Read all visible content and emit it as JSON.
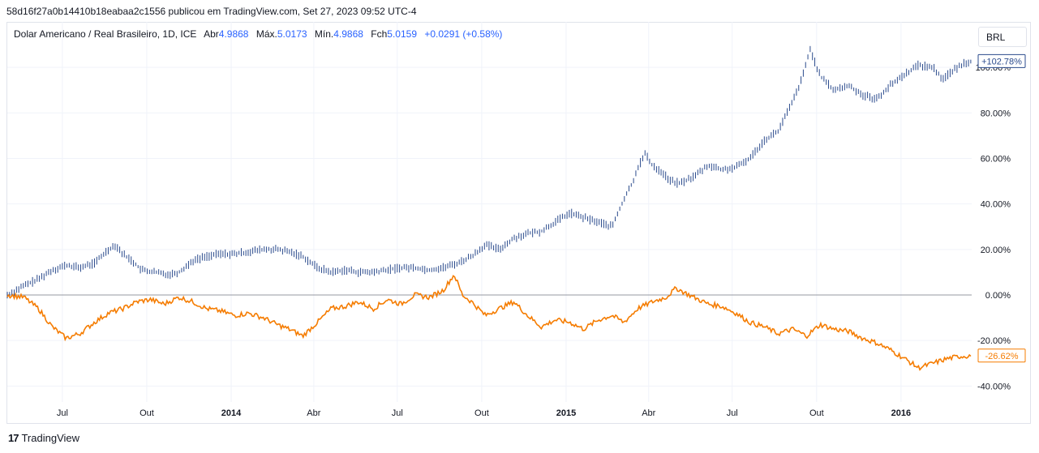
{
  "header": {
    "text": "58d16f27a0b14410b18eabaa2c1556 publicou em TradingView.com, Set 27, 2023 09:52 UTC-4"
  },
  "legend": {
    "symbol": "Dolar Americano / Real Brasileiro, 1D, ICE",
    "open_label": "Abr",
    "open": "4.9868",
    "high_label": "Máx.",
    "high": "5.0173",
    "low_label": "Mín.",
    "low": "4.9868",
    "close_label": "Fch",
    "close": "5.0159",
    "change": "+0.0291 (+0.58%)"
  },
  "currency_button": "BRL",
  "footer": {
    "logo": "17",
    "brand": "TradingView"
  },
  "colors": {
    "primary": "#2a4a8c",
    "compare": "#f57c00",
    "grid": "#f0f3fa",
    "zero_line": "#9598a1",
    "accent": "#2962ff"
  },
  "chart_data": {
    "type": "line",
    "x_axis": {
      "type": "date",
      "range": [
        "2013-05-02",
        "2016-03-18"
      ],
      "ticks": [
        {
          "date": "2013-07-01",
          "label": "Jul",
          "bold": false
        },
        {
          "date": "2013-10-01",
          "label": "Out",
          "bold": false
        },
        {
          "date": "2014-01-01",
          "label": "2014",
          "bold": true
        },
        {
          "date": "2014-04-01",
          "label": "Abr",
          "bold": false
        },
        {
          "date": "2014-07-01",
          "label": "Jul",
          "bold": false
        },
        {
          "date": "2014-10-01",
          "label": "Out",
          "bold": false
        },
        {
          "date": "2015-01-01",
          "label": "2015",
          "bold": true
        },
        {
          "date": "2015-04-01",
          "label": "Abr",
          "bold": false
        },
        {
          "date": "2015-07-01",
          "label": "Jul",
          "bold": false
        },
        {
          "date": "2015-10-01",
          "label": "Out",
          "bold": false
        },
        {
          "date": "2016-01-01",
          "label": "2016",
          "bold": true
        }
      ]
    },
    "y_axis": {
      "unit": "%",
      "range": [
        -47,
        120
      ],
      "ticks": [
        100,
        80,
        60,
        40,
        20,
        0,
        -20,
        -40
      ],
      "tick_labels": [
        "100.00%",
        "80.00%",
        "60.00%",
        "40.00%",
        "20.00%",
        "0.00%",
        "-20.00%",
        "-40.00%"
      ]
    },
    "series": [
      {
        "style": "ohlc-bars",
        "color": "#2a4a8c",
        "last_label": "+102.78%",
        "points": [
          [
            "2013-05-02",
            0
          ],
          [
            "2013-05-20",
            4
          ],
          [
            "2013-06-05",
            7
          ],
          [
            "2013-06-20",
            11
          ],
          [
            "2013-07-05",
            13
          ],
          [
            "2013-07-20",
            12
          ],
          [
            "2013-08-05",
            14
          ],
          [
            "2013-08-20",
            20
          ],
          [
            "2013-08-28",
            22
          ],
          [
            "2013-09-05",
            18
          ],
          [
            "2013-09-15",
            15
          ],
          [
            "2013-09-25",
            11
          ],
          [
            "2013-10-10",
            10
          ],
          [
            "2013-10-25",
            9
          ],
          [
            "2013-11-05",
            10
          ],
          [
            "2013-11-20",
            15
          ],
          [
            "2013-12-05",
            17
          ],
          [
            "2013-12-20",
            18
          ],
          [
            "2014-01-05",
            18
          ],
          [
            "2014-01-20",
            19
          ],
          [
            "2014-02-05",
            20
          ],
          [
            "2014-02-20",
            20
          ],
          [
            "2014-03-05",
            19
          ],
          [
            "2014-03-20",
            17
          ],
          [
            "2014-04-05",
            12
          ],
          [
            "2014-04-20",
            10
          ],
          [
            "2014-05-05",
            11
          ],
          [
            "2014-05-20",
            10
          ],
          [
            "2014-06-05",
            10
          ],
          [
            "2014-06-20",
            11
          ],
          [
            "2014-07-05",
            12
          ],
          [
            "2014-07-20",
            12
          ],
          [
            "2014-08-05",
            11
          ],
          [
            "2014-08-20",
            12
          ],
          [
            "2014-09-05",
            14
          ],
          [
            "2014-09-20",
            17
          ],
          [
            "2014-10-05",
            22
          ],
          [
            "2014-10-20",
            20
          ],
          [
            "2014-11-05",
            25
          ],
          [
            "2014-11-20",
            27
          ],
          [
            "2014-12-05",
            28
          ],
          [
            "2014-12-20",
            32
          ],
          [
            "2015-01-05",
            36
          ],
          [
            "2015-01-20",
            34
          ],
          [
            "2015-02-05",
            32
          ],
          [
            "2015-02-20",
            30
          ],
          [
            "2015-03-05",
            42
          ],
          [
            "2015-03-15",
            50
          ],
          [
            "2015-03-20",
            56
          ],
          [
            "2015-03-28",
            62
          ],
          [
            "2015-04-05",
            57
          ],
          [
            "2015-04-15",
            54
          ],
          [
            "2015-04-25",
            50
          ],
          [
            "2015-05-05",
            49
          ],
          [
            "2015-05-20",
            52
          ],
          [
            "2015-06-05",
            57
          ],
          [
            "2015-06-20",
            55
          ],
          [
            "2015-07-05",
            56
          ],
          [
            "2015-07-20",
            60
          ],
          [
            "2015-08-05",
            68
          ],
          [
            "2015-08-20",
            72
          ],
          [
            "2015-09-05",
            85
          ],
          [
            "2015-09-15",
            95
          ],
          [
            "2015-09-24",
            108
          ],
          [
            "2015-10-05",
            96
          ],
          [
            "2015-10-20",
            90
          ],
          [
            "2015-11-05",
            92
          ],
          [
            "2015-11-20",
            88
          ],
          [
            "2015-12-05",
            86
          ],
          [
            "2015-12-20",
            92
          ],
          [
            "2016-01-05",
            97
          ],
          [
            "2016-01-20",
            101
          ],
          [
            "2016-02-05",
            100
          ],
          [
            "2016-02-15",
            95
          ],
          [
            "2016-02-25",
            98
          ],
          [
            "2016-03-10",
            102
          ],
          [
            "2016-03-18",
            102.78
          ]
        ]
      },
      {
        "style": "line",
        "color": "#f57c00",
        "last_label": "-26.62%",
        "points": [
          [
            "2013-05-02",
            0
          ],
          [
            "2013-05-20",
            -1
          ],
          [
            "2013-06-05",
            -6
          ],
          [
            "2013-06-20",
            -14
          ],
          [
            "2013-07-05",
            -19
          ],
          [
            "2013-07-20",
            -17
          ],
          [
            "2013-08-05",
            -12
          ],
          [
            "2013-08-20",
            -8
          ],
          [
            "2013-09-05",
            -6
          ],
          [
            "2013-09-20",
            -3
          ],
          [
            "2013-10-05",
            -2
          ],
          [
            "2013-10-20",
            -4
          ],
          [
            "2013-11-05",
            -1
          ],
          [
            "2013-11-20",
            -3
          ],
          [
            "2013-12-05",
            -6
          ],
          [
            "2013-12-20",
            -7
          ],
          [
            "2014-01-05",
            -9
          ],
          [
            "2014-01-20",
            -8
          ],
          [
            "2014-02-05",
            -10
          ],
          [
            "2014-02-20",
            -13
          ],
          [
            "2014-03-05",
            -15
          ],
          [
            "2014-03-20",
            -18
          ],
          [
            "2014-04-05",
            -12
          ],
          [
            "2014-04-20",
            -6
          ],
          [
            "2014-05-05",
            -5
          ],
          [
            "2014-05-20",
            -3
          ],
          [
            "2014-06-05",
            -6
          ],
          [
            "2014-06-20",
            -2
          ],
          [
            "2014-07-05",
            -4
          ],
          [
            "2014-07-20",
            0
          ],
          [
            "2014-08-05",
            -1
          ],
          [
            "2014-08-20",
            2
          ],
          [
            "2014-09-01",
            9
          ],
          [
            "2014-09-10",
            0
          ],
          [
            "2014-09-20",
            -3
          ],
          [
            "2014-10-05",
            -9
          ],
          [
            "2014-10-20",
            -6
          ],
          [
            "2014-11-05",
            -3
          ],
          [
            "2014-11-20",
            -9
          ],
          [
            "2014-12-05",
            -14
          ],
          [
            "2014-12-20",
            -11
          ],
          [
            "2015-01-05",
            -12
          ],
          [
            "2015-01-20",
            -15
          ],
          [
            "2015-02-05",
            -11
          ],
          [
            "2015-02-20",
            -9
          ],
          [
            "2015-03-05",
            -12
          ],
          [
            "2015-03-20",
            -6
          ],
          [
            "2015-04-05",
            -3
          ],
          [
            "2015-04-20",
            -1
          ],
          [
            "2015-05-01",
            3
          ],
          [
            "2015-05-15",
            0
          ],
          [
            "2015-06-05",
            -4
          ],
          [
            "2015-06-20",
            -5
          ],
          [
            "2015-07-05",
            -8
          ],
          [
            "2015-07-20",
            -12
          ],
          [
            "2015-08-05",
            -14
          ],
          [
            "2015-08-20",
            -17
          ],
          [
            "2015-09-05",
            -15
          ],
          [
            "2015-09-20",
            -18
          ],
          [
            "2015-10-05",
            -13
          ],
          [
            "2015-10-20",
            -15
          ],
          [
            "2015-11-05",
            -16
          ],
          [
            "2015-11-20",
            -19
          ],
          [
            "2015-12-05",
            -21
          ],
          [
            "2015-12-20",
            -24
          ],
          [
            "2016-01-05",
            -28
          ],
          [
            "2016-01-20",
            -32
          ],
          [
            "2016-02-05",
            -30
          ],
          [
            "2016-02-20",
            -28
          ],
          [
            "2016-03-05",
            -27
          ],
          [
            "2016-03-18",
            -26.62
          ]
        ]
      }
    ],
    "zero_line": true,
    "grid": true
  }
}
